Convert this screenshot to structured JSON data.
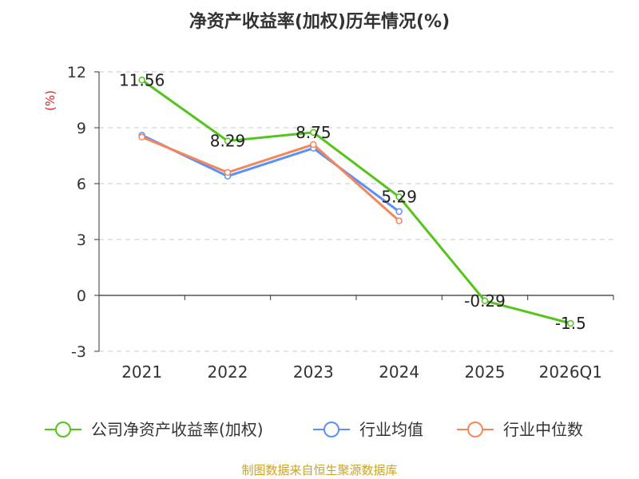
{
  "chart_data": {
    "type": "line",
    "title": "净资产收益率(加权)历年情况(%)",
    "ylabel": "(%)",
    "xlabel": "",
    "categories": [
      "2021",
      "2022",
      "2023",
      "2024",
      "2025",
      "2026Q1"
    ],
    "ylim": [
      -3,
      12
    ],
    "yticks": [
      "-3",
      "0",
      "3",
      "6",
      "9",
      "12"
    ],
    "grid": true,
    "legend_position": "bottom",
    "series": [
      {
        "name": "公司净资产收益率(加权)",
        "color": "#52c41a",
        "values": [
          11.56,
          8.29,
          8.75,
          5.29,
          -0.29,
          -1.5
        ],
        "labels": [
          "11.56",
          "8.29",
          "8.75",
          "5.29",
          "-0.29",
          "-1.5"
        ]
      },
      {
        "name": "行业均值",
        "color": "#5b8ff9",
        "values": [
          8.6,
          6.4,
          7.9,
          4.5,
          null,
          null
        ]
      },
      {
        "name": "行业中位数",
        "color": "#f4865a",
        "values": [
          8.5,
          6.6,
          8.1,
          4.0,
          null,
          null
        ]
      }
    ]
  },
  "footer": {
    "source": "制图数据来自恒生聚源数据库"
  }
}
